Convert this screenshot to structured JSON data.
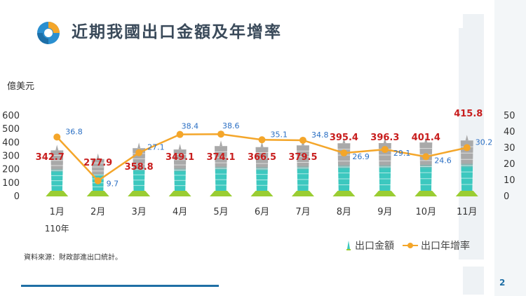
{
  "slide": {
    "title": "近期我國出口金額及年增率",
    "unit_left": "億美元",
    "unit_right": "%",
    "source": "資料來源：財政部進出口統計。",
    "page_number": "2",
    "year_label": "110年"
  },
  "colors": {
    "tower_top": "#a9a9a9",
    "tower_bottom": "#3cc8bf",
    "tower_base": "#9acd32",
    "line": "#f4a62a",
    "bar_label": "#c81e1e",
    "line_label": "#2a6fc4",
    "bottom_bar": "#1f6fa5"
  },
  "chart_data": {
    "type": "bar",
    "categories": [
      "1月",
      "2月",
      "3月",
      "4月",
      "5月",
      "6月",
      "7月",
      "8月",
      "9月",
      "10月",
      "11月"
    ],
    "ylim": [
      0,
      600
    ],
    "y2lim": [
      0,
      50
    ],
    "yticks": [
      0,
      100,
      200,
      300,
      400,
      500,
      600
    ],
    "y2ticks": [
      0,
      10,
      20,
      30,
      40,
      50
    ],
    "grid": false,
    "legend_position": "bottom-right",
    "series": [
      {
        "name": "出口金額",
        "type": "bar",
        "axis": "left",
        "values": [
          342.7,
          277.9,
          358.8,
          349.1,
          374.1,
          366.5,
          379.5,
          395.4,
          396.3,
          401.4,
          415.8
        ],
        "labels": [
          "342.7",
          "277.9",
          "358.8",
          "349.1",
          "374.1",
          "366.5",
          "379.5",
          "395.4",
          "396.3",
          "401.4",
          "415.8"
        ]
      },
      {
        "name": "出口年增率",
        "type": "line",
        "axis": "right",
        "values": [
          36.8,
          9.7,
          27.1,
          38.4,
          38.6,
          35.1,
          34.8,
          26.9,
          29.1,
          24.6,
          30.2
        ],
        "labels": [
          "36.8",
          "9.7",
          "27.1",
          "38.4",
          "38.6",
          "35.1",
          "34.8",
          "26.9",
          "29.1",
          "24.6",
          "30.2"
        ]
      }
    ]
  }
}
